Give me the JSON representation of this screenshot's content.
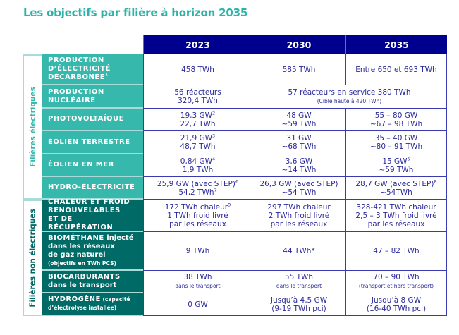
{
  "title": "Les objectifs par filière à horizon 2035",
  "headers": [
    "2023",
    "2030",
    "2035"
  ],
  "groups": {
    "elec": "Filières électriques",
    "non": "Filières non électriques"
  },
  "colors": {
    "header": "#00008f",
    "elec": "#36b8ad",
    "non": "#006b66",
    "title": "#2db3a8",
    "text": "#2a2a9a"
  },
  "rows": [
    {
      "group": "elec",
      "label": [
        [
          {
            "t": "PRODUCTION",
            "s": "b"
          }
        ],
        [
          {
            "t": "D’ÉLECTRICITÉ",
            "s": "b"
          }
        ],
        [
          {
            "t": "DÉCARBONÉE",
            "s": "b"
          },
          {
            "t": "1",
            "s": "sup"
          }
        ]
      ],
      "cells": [
        {
          "lines": [
            [
              {
                "t": "458 TWh"
              }
            ]
          ]
        },
        {
          "lines": [
            [
              {
                "t": "585 TWh"
              }
            ]
          ]
        },
        {
          "lines": [
            [
              {
                "t": "Entre 650 et 693 TWh"
              }
            ]
          ]
        }
      ]
    },
    {
      "group": "elec",
      "label": [
        [
          {
            "t": "PRODUCTION",
            "s": "b"
          }
        ],
        [
          {
            "t": "NUCLÉAIRE",
            "s": "b"
          }
        ]
      ],
      "cells": [
        {
          "lines": [
            [
              {
                "t": "56 réacteurs"
              }
            ],
            [
              {
                "t": "320,4 TWh"
              }
            ]
          ]
        },
        {
          "span": 2,
          "lines": [
            [
              {
                "t": "57 réacteurs en service 380 TWh"
              }
            ],
            [
              {
                "t": "(Cible haute à 420 TWh)",
                "s": "cs"
              }
            ]
          ]
        }
      ]
    },
    {
      "group": "elec",
      "label": [
        [
          {
            "t": "PHOTOVOLTAÏQUE",
            "s": "b"
          }
        ]
      ],
      "cells": [
        {
          "lines": [
            [
              {
                "t": "19,3 GW"
              },
              {
                "t": "2",
                "s": "sup"
              }
            ],
            [
              {
                "t": "22,7 TWh"
              }
            ]
          ]
        },
        {
          "lines": [
            [
              {
                "t": "48 GW"
              }
            ],
            [
              {
                "t": "~59 TWh"
              }
            ]
          ]
        },
        {
          "lines": [
            [
              {
                "t": "55 – 80 GW"
              }
            ],
            [
              {
                "t": "~67 – 98 TWh"
              }
            ]
          ]
        }
      ]
    },
    {
      "group": "elec",
      "label": [
        [
          {
            "t": "ÉOLIEN TERRESTRE",
            "s": "b"
          }
        ]
      ],
      "cells": [
        {
          "lines": [
            [
              {
                "t": "21,9 GW"
              },
              {
                "t": "3",
                "s": "sup"
              }
            ],
            [
              {
                "t": "48,7 TWh"
              }
            ]
          ]
        },
        {
          "lines": [
            [
              {
                "t": "31 GW"
              }
            ],
            [
              {
                "t": "~68 TWh"
              }
            ]
          ]
        },
        {
          "lines": [
            [
              {
                "t": "35 – 40 GW"
              }
            ],
            [
              {
                "t": "~80 – 91 TWh"
              }
            ]
          ]
        }
      ]
    },
    {
      "group": "elec",
      "label": [
        [
          {
            "t": "ÉOLIEN EN MER",
            "s": "b"
          }
        ]
      ],
      "cells": [
        {
          "lines": [
            [
              {
                "t": "0,84 GW"
              },
              {
                "t": "4",
                "s": "sup"
              }
            ],
            [
              {
                "t": "1,9 TWh"
              }
            ]
          ]
        },
        {
          "lines": [
            [
              {
                "t": "3,6 GW"
              }
            ],
            [
              {
                "t": "~14 TWh"
              }
            ]
          ]
        },
        {
          "lines": [
            [
              {
                "t": "15 GW"
              },
              {
                "t": "5",
                "s": "sup"
              }
            ],
            [
              {
                "t": "~59 TWh"
              }
            ]
          ]
        }
      ]
    },
    {
      "group": "elec",
      "label": [
        [
          {
            "t": "HYDRO-ÉLECTRICITÉ",
            "s": "b"
          }
        ]
      ],
      "cells": [
        {
          "lines": [
            [
              {
                "t": "25,9 GW (avec STEP)"
              },
              {
                "t": "6",
                "s": "sup"
              }
            ],
            [
              {
                "t": "54,2 TWh"
              },
              {
                "t": "7",
                "s": "sup"
              }
            ]
          ]
        },
        {
          "lines": [
            [
              {
                "t": "26,3 GW (avec STEP)"
              }
            ],
            [
              {
                "t": "~54 TWh"
              }
            ]
          ]
        },
        {
          "lines": [
            [
              {
                "t": "28,7 GW (avec STEP)"
              },
              {
                "t": "8",
                "s": "sup"
              }
            ],
            [
              {
                "t": "~54TWh"
              }
            ]
          ]
        }
      ]
    },
    {
      "group": "non",
      "label": [
        [
          {
            "t": "CHALEUR ET FROID",
            "s": "b"
          }
        ],
        [
          {
            "t": "RENOUVELABLES",
            "s": "b"
          }
        ],
        [
          {
            "t": "ET DE RÉCUPÉRATION",
            "s": "b"
          }
        ]
      ],
      "cells": [
        {
          "lines": [
            [
              {
                "t": "172 TWh chaleur"
              },
              {
                "t": "9",
                "s": "sup"
              }
            ],
            [
              {
                "t": "1 TWh froid livré"
              }
            ],
            [
              {
                "t": "par les réseaux"
              }
            ]
          ]
        },
        {
          "lines": [
            [
              {
                "t": "297 TWh chaleur"
              }
            ],
            [
              {
                "t": "2 TWh froid livré"
              }
            ],
            [
              {
                "t": "par les réseaux"
              }
            ]
          ]
        },
        {
          "lines": [
            [
              {
                "t": "328-421 TWh chaleur"
              }
            ],
            [
              {
                "t": "2,5 – 3 TWh froid livré"
              }
            ],
            [
              {
                "t": "par les réseaux"
              }
            ]
          ]
        }
      ]
    },
    {
      "group": "non",
      "label": [
        [
          {
            "t": "BIOMÉTHANE",
            "s": "b"
          },
          {
            "t": " injecté",
            "s": "n"
          }
        ],
        [
          {
            "t": "dans les réseaux",
            "s": "n"
          }
        ],
        [
          {
            "t": "de gaz naturel",
            "s": "n"
          }
        ],
        [
          {
            "t": "(objectifs en TWh PCS)",
            "s": "s"
          }
        ]
      ],
      "cells": [
        {
          "lines": [
            [
              {
                "t": "9 TWh"
              }
            ]
          ]
        },
        {
          "lines": [
            [
              {
                "t": "44 TWh*"
              }
            ]
          ]
        },
        {
          "lines": [
            [
              {
                "t": "47 – 82 TWh"
              }
            ]
          ]
        }
      ]
    },
    {
      "group": "non",
      "label": [
        [
          {
            "t": "BIOCARBURANTS",
            "s": "b"
          }
        ],
        [
          {
            "t": "dans le transport",
            "s": "n"
          }
        ]
      ],
      "cells": [
        {
          "lines": [
            [
              {
                "t": "38 TWh"
              }
            ],
            [
              {
                "t": "dans le transport",
                "s": "cs"
              }
            ]
          ]
        },
        {
          "lines": [
            [
              {
                "t": "55 TWh"
              }
            ],
            [
              {
                "t": "dans le transport",
                "s": "cs"
              }
            ]
          ]
        },
        {
          "lines": [
            [
              {
                "t": "70 – 90 TWh"
              }
            ],
            [
              {
                "t": "(transport et hors transport)",
                "s": "cs"
              }
            ]
          ]
        }
      ]
    },
    {
      "group": "non",
      "label": [
        [
          {
            "t": "HYDROGÈNE",
            "s": "b"
          },
          {
            "t": " (capacité",
            "s": "s"
          }
        ],
        [
          {
            "t": "d’électrolyse installée)",
            "s": "s"
          }
        ]
      ],
      "cells": [
        {
          "lines": [
            [
              {
                "t": "0 GW"
              }
            ]
          ]
        },
        {
          "lines": [
            [
              {
                "t": "Jusqu’à 4,5 GW"
              }
            ],
            [
              {
                "t": "(9-19 TWh pci)"
              }
            ]
          ]
        },
        {
          "lines": [
            [
              {
                "t": "Jusqu’à 8 GW"
              }
            ],
            [
              {
                "t": "(16-40 TWh pci)"
              }
            ]
          ]
        }
      ]
    }
  ]
}
